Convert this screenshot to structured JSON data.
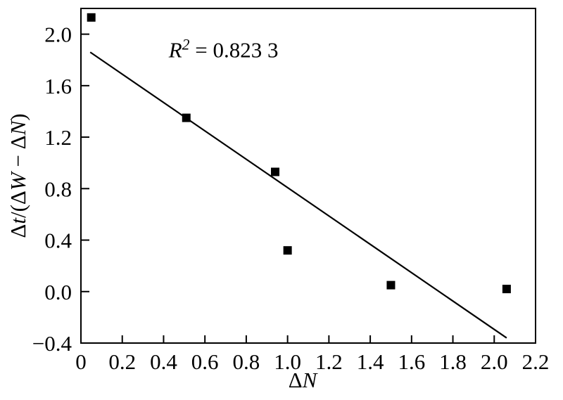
{
  "chart_data": {
    "type": "scatter",
    "xlabel": "ΔN",
    "ylabel": "Δt/(ΔW − ΔN)",
    "annotation": "R² = 0.823 3",
    "annotation_pos": {
      "x": 0.69,
      "y": 1.82
    },
    "xlabel_parts": [
      {
        "t": "Δ"
      },
      {
        "t": "N",
        "i": 1
      }
    ],
    "ylabel_parts": [
      {
        "t": "Δ"
      },
      {
        "t": "t",
        "i": 1
      },
      {
        "t": "/(Δ"
      },
      {
        "t": "W",
        "i": 1
      },
      {
        "t": " − Δ"
      },
      {
        "t": "N",
        "i": 1
      },
      {
        "t": ")"
      }
    ],
    "annotation_parts": [
      {
        "t": "R",
        "i": 1
      },
      {
        "t": "2",
        "i": 1,
        "sup": 1
      },
      {
        "t": " = 0.823 3"
      }
    ],
    "xlim": [
      0,
      2.2
    ],
    "ylim": [
      -0.4,
      2.2
    ],
    "xticks": [
      0,
      0.2,
      0.4,
      0.6,
      0.8,
      1.0,
      1.2,
      1.4,
      1.6,
      1.8,
      2.0,
      2.2
    ],
    "xtick_labels": [
      "0",
      "0.2",
      "0.4",
      "0.6",
      "0.8",
      "1.0",
      "1.2",
      "1.4",
      "1.6",
      "1.8",
      "2.0",
      "2.2"
    ],
    "yticks": [
      -0.4,
      0.0,
      0.4,
      0.8,
      1.2,
      1.6,
      2.0
    ],
    "ytick_labels": [
      "−0.4",
      "0.0",
      "0.4",
      "0.8",
      "1.2",
      "1.6",
      "2.0"
    ],
    "marker": "filled-square",
    "grid": "off",
    "legend": "none",
    "points": [
      [
        0.05,
        2.13
      ],
      [
        0.51,
        1.35
      ],
      [
        0.94,
        0.93
      ],
      [
        1.0,
        0.32
      ],
      [
        1.5,
        0.05
      ],
      [
        2.06,
        0.02
      ]
    ],
    "trendline": {
      "x1": 0.045,
      "y1": 1.86,
      "x2": 2.06,
      "y2": -0.36
    },
    "colors": {
      "marker": "#000000",
      "line": "#000000",
      "frame": "#000000",
      "text": "#000000",
      "background": "#ffffff"
    }
  }
}
